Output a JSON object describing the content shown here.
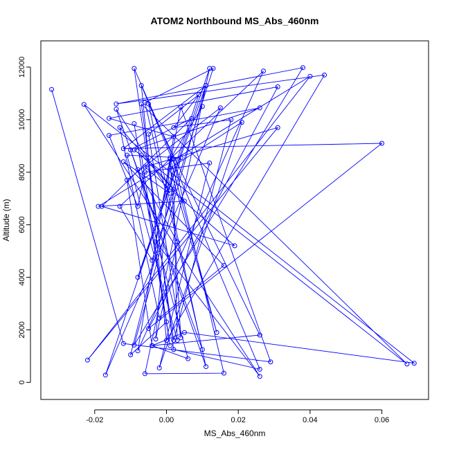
{
  "chart_data": {
    "type": "line",
    "title": "ATOM2 Northbound MS_Abs_460nm",
    "xlabel": "MS_Abs_460nm",
    "ylabel": "Altitude (m)",
    "xlim": [
      -0.035,
      0.073
    ],
    "ylim": [
      -650,
      13000
    ],
    "x_ticks": [
      -0.02,
      0.0,
      0.02,
      0.04,
      0.06
    ],
    "x_tick_labels": [
      "-0.02",
      "0.00",
      "0.02",
      "0.04",
      "0.06"
    ],
    "y_ticks": [
      0,
      2000,
      4000,
      6000,
      8000,
      10000,
      12000
    ],
    "y_tick_labels": [
      "0",
      "2000",
      "4000",
      "6000",
      "8000",
      "10000",
      "12000"
    ],
    "grid": false,
    "series_color": "#0000FF",
    "series": [
      {
        "name": "",
        "x": [
          -0.032,
          -0.012,
          0.029,
          0.004,
          -0.003,
          0.026,
          -0.023,
          0.069,
          0.005,
          -0.004,
          -0.011,
          0.015,
          -0.017,
          0.012,
          -0.006,
          0.016,
          0.002,
          -0.009,
          0.002,
          0.018,
          0.002,
          0.011,
          -0.008,
          0.009,
          -0.005,
          0.004,
          0.001,
          0.014,
          0.001,
          0.021,
          -0.002,
          0.012,
          -0.006,
          -0.008,
          -0.016,
          0.026,
          -0.009,
          0.067,
          -0.007,
          0.002,
          0.026,
          -0.007,
          0.0,
          0.044,
          -0.014,
          0.038,
          -0.009,
          0.011,
          -0.012,
          0.06,
          -0.005,
          0.031,
          -0.016,
          0.002,
          -0.008,
          0.027,
          -0.013,
          -0.004,
          0.013,
          -0.006,
          0.01,
          -0.01,
          0.007,
          -0.018,
          0.019,
          -0.006,
          0.031,
          -0.022,
          0.04,
          -0.019,
          0.005,
          -0.007,
          0.001,
          -0.009,
          0.0,
          -0.01,
          0.004,
          -0.011,
          0.003,
          0.002,
          -0.013,
          -0.002,
          0.016,
          -0.012,
          0.001,
          -0.014,
          0.011,
          -0.005,
          0.026,
          -0.004,
          0.006,
          -0.008,
          0.003,
          -0.003,
          0.001,
          0.01
        ],
        "y": [
          11150,
          1480,
          780,
          10480,
          5350,
          230,
          10580,
          730,
          1900,
          1400,
          7700,
          10450,
          280,
          11950,
          330,
          350,
          8500,
          11950,
          1600,
          10000,
          9700,
          11300,
          4000,
          10950,
          9450,
          1700,
          8550,
          1900,
          8150,
          9900,
          550,
          8350,
          8000,
          6700,
          9400,
          10450,
          8850,
          700,
          10600,
          1250,
          500,
          11300,
          1600,
          11700,
          10600,
          11980,
          1420,
          11300,
          8900,
          9100,
          2050,
          11250,
          10050,
          9350,
          1200,
          11850,
          6700,
          4650,
          11950,
          10650,
          1250,
          8850,
          10050,
          6700,
          5200,
          8200,
          9700,
          850,
          11650,
          6700,
          6900,
          8650,
          1400,
          9850,
          2300,
          1050,
          8550,
          8650,
          1600,
          7350,
          9700,
          2450,
          4450,
          8400,
          7200,
          10400,
          600,
          10600,
          1800,
          1400,
          900,
          8100,
          5350,
          1650,
          8500,
          10500
        ]
      }
    ]
  }
}
